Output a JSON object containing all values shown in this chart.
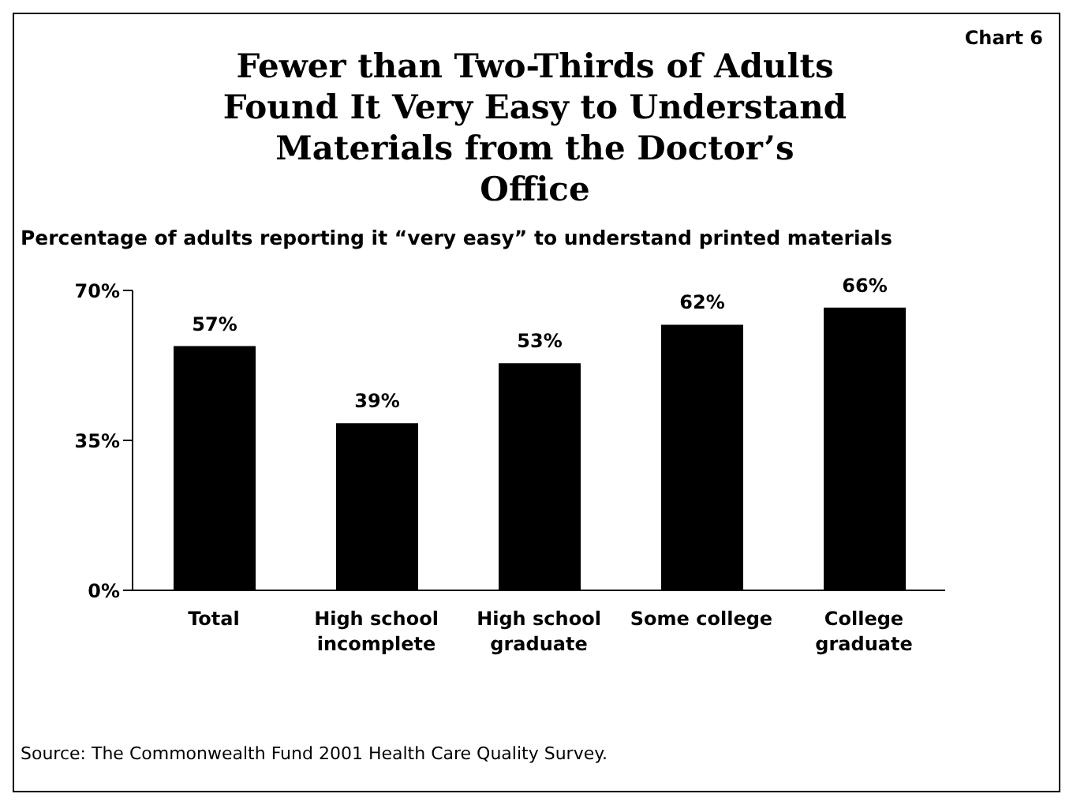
{
  "chart_data": {
    "type": "bar",
    "title": "Fewer than Two-Thirds of Adults Found It Very Easy to Understand Materials from the Doctor’s Office",
    "subtitle": "Percentage of adults reporting it “very easy” to understand printed materials",
    "categories": [
      "Total",
      "High school incomplete",
      "High school graduate",
      "Some college",
      "College graduate"
    ],
    "values": [
      57,
      39,
      53,
      62,
      66
    ],
    "value_labels": [
      "57%",
      "39%",
      "53%",
      "62%",
      "66%"
    ],
    "color": "#000000",
    "ylim": [
      0,
      70
    ],
    "yticks": [
      {
        "value": 0,
        "label": "0%"
      },
      {
        "value": 35,
        "label": "35%"
      },
      {
        "value": 70,
        "label": "70%"
      }
    ],
    "grid": false,
    "legend": false,
    "annotations": [
      "Chart 6",
      "Source: The Commonwealth Fund 2001 Health Care Quality Survey."
    ]
  }
}
